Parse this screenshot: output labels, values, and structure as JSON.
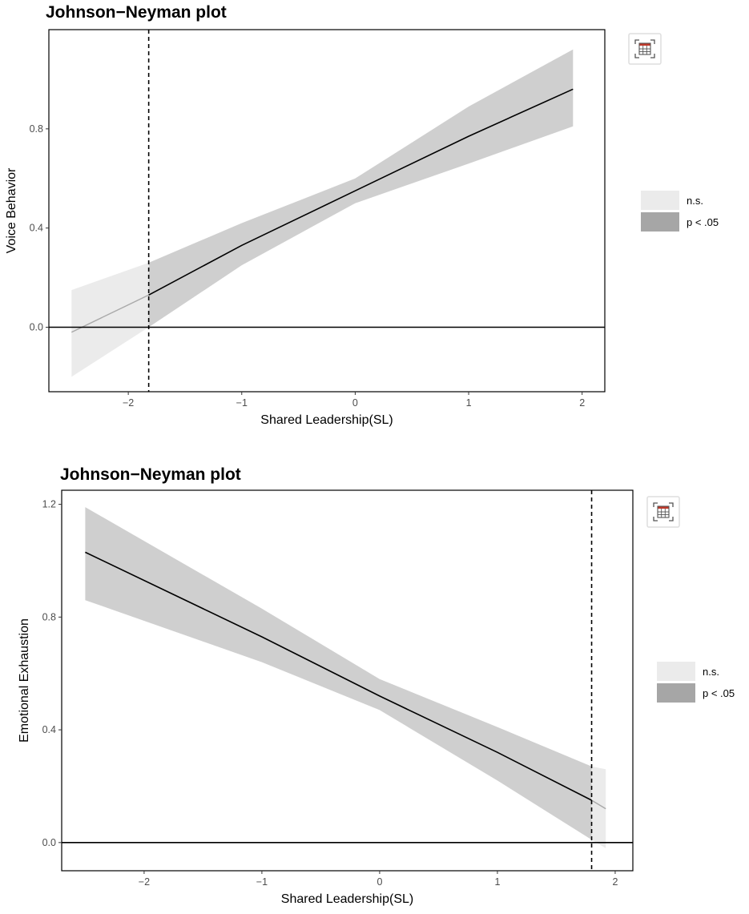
{
  "chart_data": [
    {
      "type": "line",
      "title": "Johnson−Neyman plot",
      "xlabel": "Shared Leadership(SL)",
      "ylabel": "Voice Behavior",
      "xlim": [
        -2.7,
        2.2
      ],
      "ylim": [
        -0.26,
        1.2
      ],
      "x_ticks": [
        -2,
        -1,
        0,
        1,
        2
      ],
      "x_tick_labels": [
        "−2",
        "−1",
        "0",
        "1",
        "2"
      ],
      "y_ticks": [
        0.0,
        0.4,
        0.8
      ],
      "y_tick_labels": [
        "0.0",
        "0.4",
        "0.8"
      ],
      "grid": false,
      "legend_position": "right",
      "legend": [
        {
          "label": "n.s.",
          "color": "#ebebeb"
        },
        {
          "label": "p < .05",
          "color": "#a6a6a6"
        }
      ],
      "jn_point": -1.82,
      "reference_line_y": 0,
      "x": [
        -2.5,
        -1.82,
        -1.0,
        0.0,
        1.0,
        1.92
      ],
      "y": [
        -0.02,
        0.13,
        0.33,
        0.55,
        0.77,
        0.96
      ],
      "ci_lower": [
        -0.2,
        0.0,
        0.25,
        0.5,
        0.66,
        0.81
      ],
      "ci_upper": [
        0.15,
        0.26,
        0.42,
        0.6,
        0.89,
        1.12
      ]
    },
    {
      "type": "line",
      "title": "Johnson−Neyman plot",
      "xlabel": "Shared Leadership(SL)",
      "ylabel": "Emotional Exhaustion",
      "xlim": [
        -2.7,
        2.15
      ],
      "ylim": [
        -0.1,
        1.25
      ],
      "x_ticks": [
        -2,
        -1,
        0,
        1,
        2
      ],
      "x_tick_labels": [
        "−2",
        "−1",
        "0",
        "1",
        "2"
      ],
      "y_ticks": [
        0.0,
        0.4,
        0.8,
        1.2
      ],
      "y_tick_labels": [
        "0.0",
        "0.4",
        "0.8",
        "1.2"
      ],
      "grid": false,
      "legend_position": "right",
      "legend": [
        {
          "label": "n.s.",
          "color": "#ebebeb"
        },
        {
          "label": "p < .05",
          "color": "#a6a6a6"
        }
      ],
      "jn_point": 1.8,
      "reference_line_y": 0,
      "x": [
        -2.5,
        -1.0,
        0.0,
        1.0,
        1.8,
        1.92
      ],
      "y": [
        1.03,
        0.73,
        0.52,
        0.32,
        0.15,
        0.12
      ],
      "ci_lower": [
        0.86,
        0.64,
        0.47,
        0.22,
        0.01,
        -0.02
      ],
      "ci_upper": [
        1.19,
        0.83,
        0.58,
        0.41,
        0.27,
        0.26
      ]
    }
  ]
}
